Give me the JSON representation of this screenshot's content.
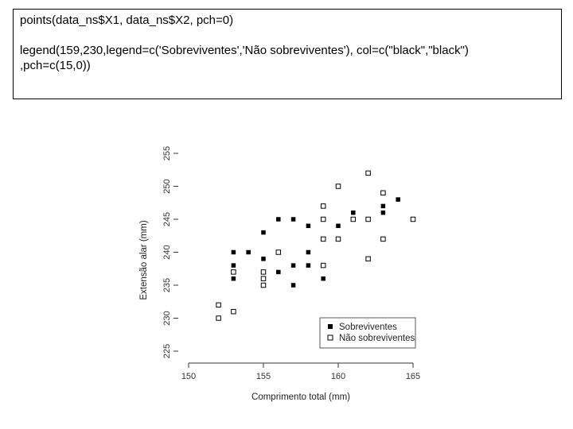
{
  "code": {
    "line1": "points(data_ns$X1, data_ns$X2, pch=0)",
    "line2": "legend(159,230,legend=c('Sobreviventes','Não sobreviventes'), col=c(\"black\",\"black\")",
    "line3": ",pch=c(15,0))"
  },
  "chart_data": {
    "type": "scatter",
    "xlabel": "Comprimento total (mm)",
    "ylabel": "Extensão alar (mm)",
    "xlim": [
      150,
      165
    ],
    "ylim": [
      225,
      255
    ],
    "x_ticks": [
      150,
      155,
      160,
      165
    ],
    "y_ticks": [
      225,
      230,
      235,
      240,
      245,
      250,
      255
    ],
    "grid": false,
    "legend_position": "bottom-right",
    "series": [
      {
        "name": "Sobreviventes",
        "marker": "filled-square",
        "color": "#000000",
        "points": [
          [
            153,
            240
          ],
          [
            153,
            238
          ],
          [
            153,
            236
          ],
          [
            154,
            240
          ],
          [
            155,
            243
          ],
          [
            155,
            239
          ],
          [
            155,
            236
          ],
          [
            156,
            245
          ],
          [
            156,
            237
          ],
          [
            157,
            245
          ],
          [
            157,
            238
          ],
          [
            157,
            235
          ],
          [
            158,
            244
          ],
          [
            158,
            240
          ],
          [
            158,
            238
          ],
          [
            159,
            236
          ],
          [
            160,
            244
          ],
          [
            161,
            246
          ],
          [
            163,
            247
          ],
          [
            163,
            246
          ],
          [
            164,
            248
          ]
        ]
      },
      {
        "name": "Não sobreviventes",
        "marker": "open-square",
        "color": "#000000",
        "points": [
          [
            152,
            232
          ],
          [
            152,
            230
          ],
          [
            153,
            231
          ],
          [
            153,
            237
          ],
          [
            155,
            237
          ],
          [
            155,
            236
          ],
          [
            155,
            235
          ],
          [
            156,
            240
          ],
          [
            159,
            247
          ],
          [
            159,
            245
          ],
          [
            159,
            242
          ],
          [
            159,
            238
          ],
          [
            160,
            250
          ],
          [
            160,
            242
          ],
          [
            161,
            245
          ],
          [
            162,
            252
          ],
          [
            162,
            245
          ],
          [
            162,
            239
          ],
          [
            163,
            249
          ],
          [
            163,
            242
          ],
          [
            165,
            245
          ]
        ]
      }
    ]
  }
}
